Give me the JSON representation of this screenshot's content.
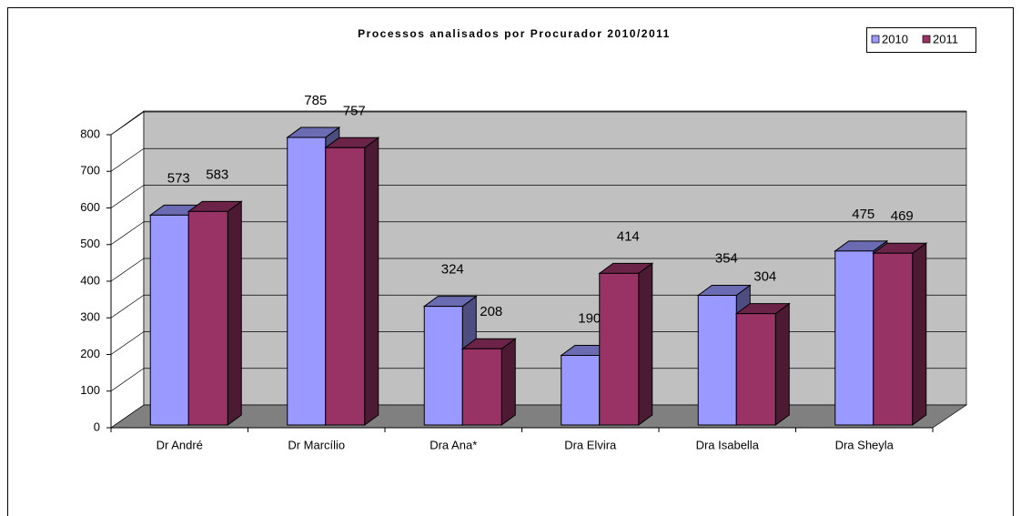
{
  "chart_data": {
    "type": "bar3d",
    "title": "Processos analisados por Procurador 2010/2011",
    "categories": [
      "Dr André",
      "Dr Marcílio",
      "Dra Ana*",
      "Dra Elvira",
      "Dra Isabella",
      "Dra Sheyla"
    ],
    "series": [
      {
        "name": "2010",
        "color": "#9999ff",
        "values": [
          573,
          785,
          324,
          190,
          354,
          475
        ]
      },
      {
        "name": "2011",
        "color": "#993366",
        "values": [
          583,
          757,
          208,
          414,
          304,
          469
        ]
      }
    ],
    "ylim": [
      0,
      800
    ],
    "yticks": [
      0,
      100,
      200,
      300,
      400,
      500,
      600,
      700,
      800
    ],
    "grid": true,
    "legend": "top-right"
  }
}
